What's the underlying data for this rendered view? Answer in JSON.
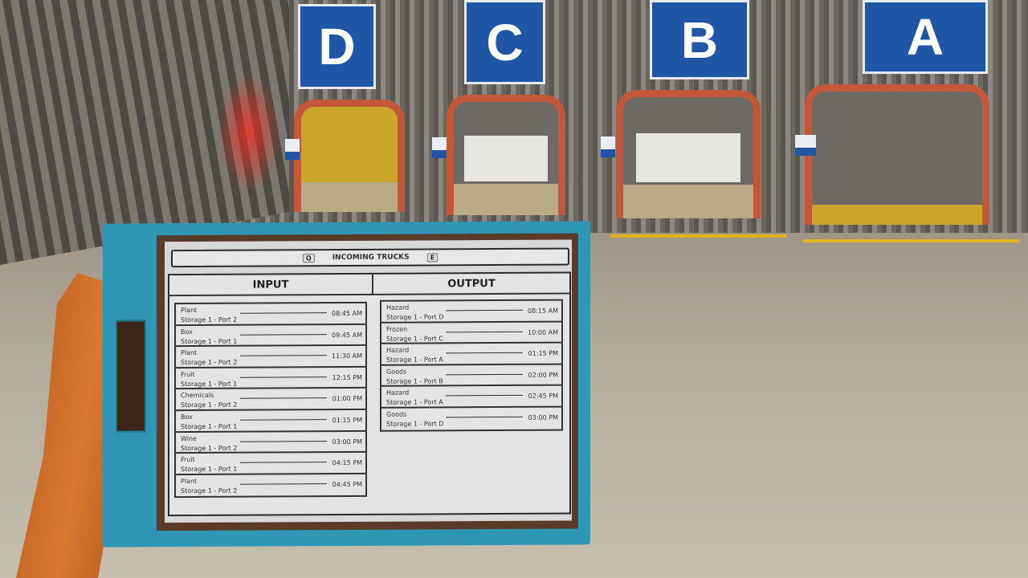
{
  "scene": {
    "dock_signs": [
      "D",
      "C",
      "B",
      "A"
    ]
  },
  "tablet": {
    "title": "INCOMING TRUCKS",
    "prev_key": "Q",
    "next_key": "E",
    "input": {
      "heading": "INPUT",
      "rows": [
        {
          "cargo": "Plant",
          "dest": "Storage 1 - Port 2",
          "time": "08:45 AM"
        },
        {
          "cargo": "Box",
          "dest": "Storage 1 - Port 1",
          "time": "09:45 AM"
        },
        {
          "cargo": "Plant",
          "dest": "Storage 1 - Port 2",
          "time": "11:30 AM"
        },
        {
          "cargo": "Fruit",
          "dest": "Storage 1 - Port 1",
          "time": "12:15 PM"
        },
        {
          "cargo": "Chemicals",
          "dest": "Storage 1 - Port 2",
          "time": "01:00 PM"
        },
        {
          "cargo": "Box",
          "dest": "Storage 1 - Port 1",
          "time": "01:15 PM"
        },
        {
          "cargo": "Wine",
          "dest": "Storage 1 - Port 2",
          "time": "03:00 PM"
        },
        {
          "cargo": "Fruit",
          "dest": "Storage 1 - Port 1",
          "time": "04:15 PM"
        },
        {
          "cargo": "Plant",
          "dest": "Storage 1 - Port 2",
          "time": "04:45 PM"
        }
      ]
    },
    "output": {
      "heading": "OUTPUT",
      "rows": [
        {
          "cargo": "Hazard",
          "dest": "Storage 1 - Port D",
          "time": "08:15 AM"
        },
        {
          "cargo": "Frozen",
          "dest": "Storage 1 - Port C",
          "time": "10:00 AM"
        },
        {
          "cargo": "Hazard",
          "dest": "Storage 1 - Port A",
          "time": "01:15 PM"
        },
        {
          "cargo": "Goods",
          "dest": "Storage 1 - Port B",
          "time": "02:00 PM"
        },
        {
          "cargo": "Hazard",
          "dest": "Storage 1 - Port A",
          "time": "02:45 PM"
        },
        {
          "cargo": "Goods",
          "dest": "Storage 1 - Port D",
          "time": "03:00 PM"
        }
      ]
    }
  }
}
